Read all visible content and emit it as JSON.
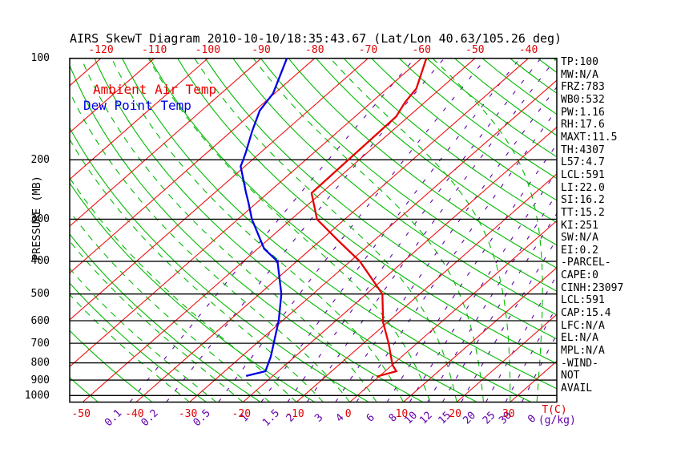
{
  "title": {
    "text": "AIRS SkewT Diagram 2010-10-10/18:35:43.67 (Lat/Lon 40.63/105.26 deg)"
  },
  "legend": {
    "ambient": "Ambient Air Temp",
    "dewpoint": "Dew Point Temp"
  },
  "axes": {
    "pressure": {
      "label": "PRESSURE (MB)",
      "ticks": [
        100,
        200,
        300,
        400,
        500,
        600,
        700,
        800,
        900,
        1000
      ]
    },
    "temperature": {
      "unit_label": "T(C)",
      "top_ticks": [
        -120,
        -110,
        -100,
        -90,
        -80,
        -70,
        -60,
        -50,
        -40
      ],
      "bottom_ticks": [
        -50,
        -40,
        -30,
        -20,
        -10,
        0,
        10,
        20,
        30
      ]
    },
    "mixing_ratio": {
      "unit_label": "Θ(g/kg)",
      "ticks": [
        0.1,
        0.2,
        0.5,
        1,
        1.5,
        2,
        3,
        4,
        6,
        8,
        10,
        12,
        15,
        20,
        25,
        30
      ]
    }
  },
  "right_panel": {
    "items": [
      "TP:100",
      "MW:N/A",
      "FRZ:783",
      "WB0:532",
      "PW:1.16",
      "RH:17.6",
      "MAXT:11.5",
      "TH:4307",
      "L57:4.7",
      "LCL:591",
      "LI:22.0",
      "SI:16.2",
      "TT:15.2",
      "KI:251",
      "SW:N/A",
      "EI:0.2",
      "-PARCEL-",
      "CAPE:0",
      "CINH:23097",
      "LCL:591",
      "CAP:15.4",
      "LFC:N/A",
      "EL:N/A",
      "MPL:N/A",
      "-WIND-",
      "NOT",
      "AVAIL"
    ]
  },
  "colors": {
    "ambient_curve": "#e80000",
    "dewpoint_curve": "#0000e6",
    "isotherm": "#f01010",
    "adiabat_green": "#00bb00",
    "mixing_purple": "#6100ab",
    "axis_black": "#000000",
    "red_text": "#e00000"
  },
  "chart_data": {
    "type": "skewt_log_p",
    "title": "AIRS SkewT Diagram 2010-10-10/18:35:43.67 (Lat/Lon 40.63/105.26 deg)",
    "pressure_axis_label": "PRESSURE (MB)",
    "pressure_ticks_mb": [
      100,
      200,
      300,
      400,
      500,
      600,
      700,
      800,
      900,
      1000
    ],
    "temperature_ticks_c_top_row": [
      -120,
      -110,
      -100,
      -90,
      -80,
      -70,
      -60,
      -50,
      -40
    ],
    "temperature_ticks_c_bottom_row": [
      -50,
      -40,
      -30,
      -20,
      -10,
      0,
      10,
      20,
      30
    ],
    "mixing_ratio_ticks_g_kg": [
      0.1,
      0.2,
      0.5,
      1,
      1.5,
      2,
      3,
      4,
      6,
      8,
      10,
      12,
      15,
      20,
      25,
      30
    ],
    "grid": {
      "pressure_lines_mb": [
        100,
        200,
        300,
        400,
        500,
        600,
        700,
        800,
        900,
        1000
      ],
      "pressure_axis_range_mb": [
        100,
        1046
      ],
      "isotherms_c": {
        "min": -160,
        "max": 40,
        "step": 10
      },
      "dry_adiabats_theta_c": {
        "min": -50,
        "max": 190,
        "step": 10
      },
      "moist_adiabats_thetaw_c": {
        "min": -30,
        "max": 65,
        "step": 5
      }
    },
    "series": [
      {
        "name": "Ambient Air Temp",
        "points": [
          {
            "p": 100,
            "t": -59.1
          },
          {
            "p": 123,
            "t": -54.5
          },
          {
            "p": 135,
            "t": -53.7
          },
          {
            "p": 149,
            "t": -52.3
          },
          {
            "p": 251,
            "t": -51.8
          },
          {
            "p": 300,
            "t": -45.2
          },
          {
            "p": 347,
            "t": -36.7
          },
          {
            "p": 400,
            "t": -28.2
          },
          {
            "p": 500,
            "t": -17.0
          },
          {
            "p": 607,
            "t": -10.8
          },
          {
            "p": 700,
            "t": -5.3
          },
          {
            "p": 811,
            "t": 0.0
          },
          {
            "p": 847,
            "t": 2.1
          },
          {
            "p": 879,
            "t": -0.4
          }
        ]
      },
      {
        "name": "Dew Point Temp",
        "points": [
          {
            "p": 100,
            "t": -85.2
          },
          {
            "p": 127,
            "t": -80.3
          },
          {
            "p": 143,
            "t": -79.1
          },
          {
            "p": 164,
            "t": -76.2
          },
          {
            "p": 190,
            "t": -72.8
          },
          {
            "p": 200,
            "t": -71.7
          },
          {
            "p": 209,
            "t": -70.8
          },
          {
            "p": 250,
            "t": -64.2
          },
          {
            "p": 267,
            "t": -61.7
          },
          {
            "p": 300,
            "t": -57.4
          },
          {
            "p": 367,
            "t": -48.8
          },
          {
            "p": 400,
            "t": -43.6
          },
          {
            "p": 500,
            "t": -35.9
          },
          {
            "p": 600,
            "t": -30.7
          },
          {
            "p": 767,
            "t": -24.5
          },
          {
            "p": 847,
            "t": -22.4
          },
          {
            "p": 875,
            "t": -25.0
          }
        ]
      }
    ]
  }
}
